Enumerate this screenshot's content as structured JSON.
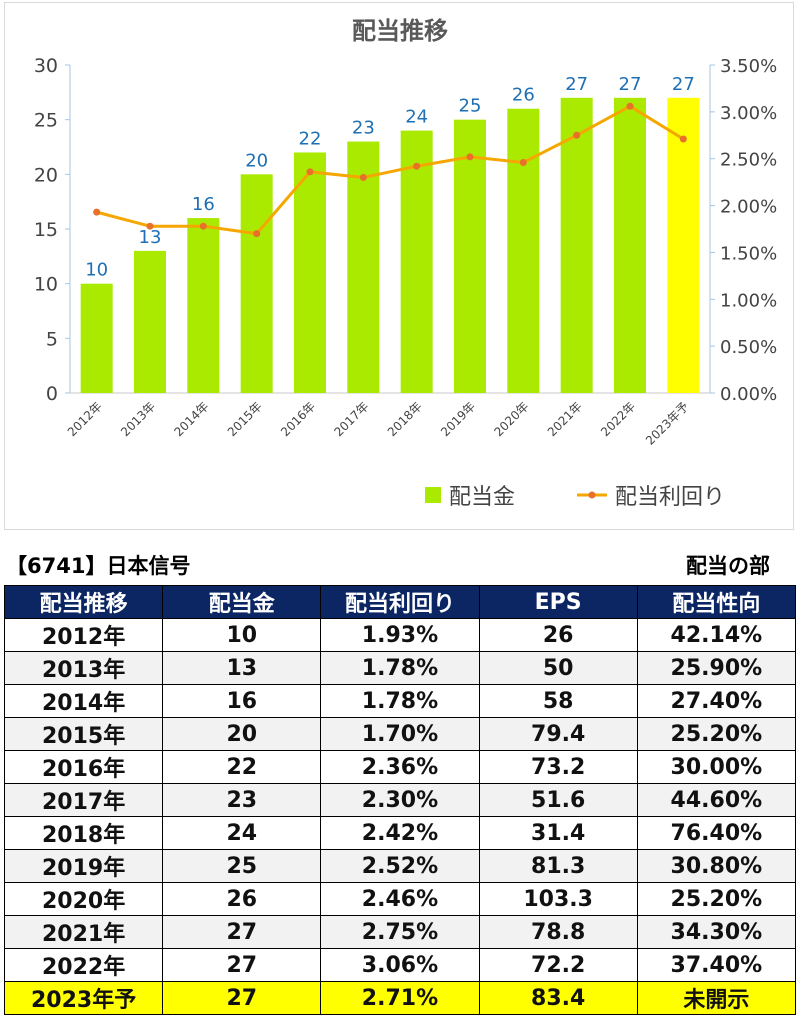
{
  "chart_data": {
    "type": "bar+line",
    "title": "配当推移",
    "categories": [
      "2012年",
      "2013年",
      "2014年",
      "2015年",
      "2016年",
      "2017年",
      "2018年",
      "2019年",
      "2020年",
      "2021年",
      "2022年",
      "2023年予"
    ],
    "series": [
      {
        "name": "配当金",
        "type": "bar",
        "axis": "left",
        "values": [
          10,
          13,
          16,
          20,
          22,
          23,
          24,
          25,
          26,
          27,
          27,
          27
        ],
        "color": "#aaea00",
        "highlight_last_color": "#ffff00"
      },
      {
        "name": "配当利回り",
        "type": "line",
        "axis": "right",
        "values": [
          1.93,
          1.78,
          1.78,
          1.7,
          2.36,
          2.3,
          2.42,
          2.52,
          2.46,
          2.75,
          3.06,
          2.71
        ],
        "color": "#f5a700",
        "marker_color": "#e8702a"
      }
    ],
    "y_left": {
      "min": 0,
      "max": 30,
      "ticks": [
        0,
        5,
        10,
        15,
        20,
        25,
        30
      ]
    },
    "y_right": {
      "min": 0,
      "max": 3.5,
      "ticks": [
        "0.00%",
        "0.50%",
        "1.00%",
        "1.50%",
        "2.00%",
        "2.50%",
        "3.00%",
        "3.50%"
      ]
    },
    "data_labels": [
      "10",
      "13",
      "16",
      "20",
      "22",
      "23",
      "24",
      "25",
      "26",
      "27",
      "27",
      "27"
    ],
    "legend_position": "bottom-right",
    "grid": false
  },
  "header": {
    "company": "【6741】日本信号",
    "section": "配当の部"
  },
  "table": {
    "columns": [
      "配当推移",
      "配当金",
      "配当利回り",
      "EPS",
      "配当性向"
    ],
    "rows": [
      [
        "2012年",
        "10",
        "1.93%",
        "26",
        "42.14%"
      ],
      [
        "2013年",
        "13",
        "1.78%",
        "50",
        "25.90%"
      ],
      [
        "2014年",
        "16",
        "1.78%",
        "58",
        "27.40%"
      ],
      [
        "2015年",
        "20",
        "1.70%",
        "79.4",
        "25.20%"
      ],
      [
        "2016年",
        "22",
        "2.36%",
        "73.2",
        "30.00%"
      ],
      [
        "2017年",
        "23",
        "2.30%",
        "51.6",
        "44.60%"
      ],
      [
        "2018年",
        "24",
        "2.42%",
        "31.4",
        "76.40%"
      ],
      [
        "2019年",
        "25",
        "2.52%",
        "81.3",
        "30.80%"
      ],
      [
        "2020年",
        "26",
        "2.46%",
        "103.3",
        "25.20%"
      ],
      [
        "2021年",
        "27",
        "2.75%",
        "78.8",
        "34.30%"
      ],
      [
        "2022年",
        "27",
        "3.06%",
        "72.2",
        "37.40%"
      ],
      [
        "2023年予",
        "27",
        "2.71%",
        "83.4",
        "未開示"
      ]
    ]
  }
}
